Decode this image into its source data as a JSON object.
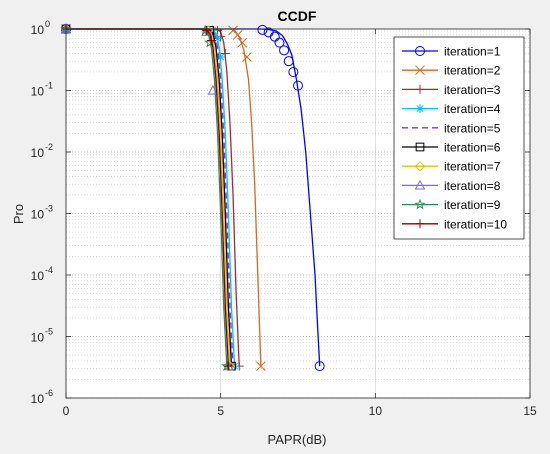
{
  "chart_data": {
    "type": "line",
    "title": "CCDF",
    "xlabel": "PAPR(dB)",
    "ylabel": "Pro",
    "x_scale": "linear",
    "y_scale": "log",
    "xlim": [
      0,
      15
    ],
    "ylim": [
      1e-06,
      1
    ],
    "x_ticks": [
      0,
      5,
      10,
      15
    ],
    "x_tick_labels": [
      "0",
      "5",
      "10",
      "15"
    ],
    "y_ticks": [
      1e-06,
      1e-05,
      0.0001,
      0.001,
      0.01,
      0.1,
      1
    ],
    "y_tick_labels": [
      {
        "base": "10",
        "exp": "-6"
      },
      {
        "base": "10",
        "exp": "-5"
      },
      {
        "base": "10",
        "exp": "-4"
      },
      {
        "base": "10",
        "exp": "-3"
      },
      {
        "base": "10",
        "exp": "-2"
      },
      {
        "base": "10",
        "exp": "-1"
      },
      {
        "base": "10",
        "exp": "0"
      }
    ],
    "grid": true,
    "minor_grid": true,
    "legend_position": "top-right",
    "series": [
      {
        "name": "iteration=1",
        "color": "#0000ff",
        "marker": "circle",
        "dash": "solid",
        "x": [
          0,
          6.3,
          6.55,
          6.8,
          7.0,
          7.15,
          7.3,
          7.45,
          7.6,
          7.75,
          7.9,
          8.05,
          8.15,
          8.2,
          8.2
        ],
        "y": [
          1,
          1,
          0.98,
          0.93,
          0.78,
          0.58,
          0.38,
          0.15,
          0.05,
          0.01,
          0.001,
          0.0001,
          1e-05,
          3.5e-06,
          3.3e-06
        ],
        "marker_x": [
          0,
          6.35,
          6.55,
          6.75,
          6.9,
          7.05,
          7.2,
          7.35,
          7.5,
          8.2
        ],
        "marker_y": [
          1,
          0.97,
          0.88,
          0.75,
          0.6,
          0.45,
          0.3,
          0.2,
          0.12,
          3.3e-06
        ]
      },
      {
        "name": "iteration=2",
        "color": "#d2691e",
        "marker": "x",
        "dash": "solid",
        "x": [
          0,
          5.3,
          5.45,
          5.6,
          5.75,
          5.9,
          6.0,
          6.1,
          6.2,
          6.3
        ],
        "y": [
          1,
          1,
          0.95,
          0.75,
          0.45,
          0.15,
          0.03,
          0.003,
          0.0001,
          3.3e-06
        ],
        "marker_x": [
          0,
          5.4,
          5.55,
          5.7,
          5.85,
          6.3
        ],
        "marker_y": [
          1,
          0.95,
          0.8,
          0.6,
          0.35,
          3.3e-06
        ]
      },
      {
        "name": "iteration=3",
        "color": "#a52a2a",
        "marker": "plus",
        "dash": "solid",
        "x": [
          0,
          4.85,
          5.0,
          5.1,
          5.2,
          5.3,
          5.4,
          5.5,
          5.6
        ],
        "y": [
          1,
          1,
          0.9,
          0.6,
          0.2,
          0.03,
          0.002,
          5e-05,
          3.3e-06
        ],
        "marker_x": [
          0,
          4.9,
          5.0,
          5.15,
          5.6
        ],
        "marker_y": [
          1,
          0.95,
          0.75,
          0.4,
          3.3e-06
        ]
      },
      {
        "name": "iteration=4",
        "color": "#00bfff",
        "marker": "asterisk",
        "dash": "solid",
        "x": [
          0,
          4.7,
          4.85,
          4.95,
          5.05,
          5.15,
          5.25,
          5.35,
          5.45
        ],
        "y": [
          1,
          1,
          0.85,
          0.5,
          0.15,
          0.02,
          0.001,
          3e-05,
          3.3e-06
        ],
        "marker_x": [
          0,
          4.75,
          4.9,
          5.0,
          5.45
        ],
        "marker_y": [
          1,
          0.95,
          0.7,
          0.35,
          3.3e-06
        ]
      },
      {
        "name": "iteration=5",
        "color": "#8a2be2",
        "marker": "none",
        "dash": "dashed",
        "x": [
          0,
          4.65,
          4.8,
          4.9,
          5.0,
          5.1,
          5.2,
          5.3,
          5.4
        ],
        "y": [
          1,
          1,
          0.85,
          0.5,
          0.15,
          0.02,
          0.001,
          3e-05,
          3.3e-06
        ],
        "marker_x": [],
        "marker_y": []
      },
      {
        "name": "iteration=6",
        "color": "#000000",
        "marker": "square",
        "dash": "solid",
        "x": [
          0,
          4.6,
          4.75,
          4.85,
          4.95,
          5.05,
          5.15,
          5.25,
          5.35
        ],
        "y": [
          1,
          1,
          0.85,
          0.5,
          0.15,
          0.02,
          0.001,
          3e-05,
          3.3e-06
        ],
        "marker_x": [
          0,
          4.65,
          5.35
        ],
        "marker_y": [
          1,
          0.95,
          3.3e-06
        ]
      },
      {
        "name": "iteration=7",
        "color": "#e6c000",
        "marker": "diamond",
        "dash": "solid",
        "x": [
          0,
          4.55,
          4.7,
          4.8,
          4.9,
          5.0,
          5.1,
          5.2,
          5.3
        ],
        "y": [
          1,
          1,
          0.85,
          0.5,
          0.15,
          0.02,
          0.001,
          3e-05,
          3.3e-06
        ],
        "marker_x": [
          0,
          4.6,
          5.3
        ],
        "marker_y": [
          1,
          0.95,
          3.3e-06
        ]
      },
      {
        "name": "iteration=8",
        "color": "#7b68ee",
        "marker": "triangle",
        "dash": "solid",
        "x": [
          0,
          4.5,
          4.65,
          4.75,
          4.85,
          4.95,
          5.05,
          5.15,
          5.25
        ],
        "y": [
          1,
          1,
          0.85,
          0.5,
          0.15,
          0.02,
          0.001,
          3e-05,
          3.3e-06
        ],
        "marker_x": [
          0,
          4.55,
          4.75,
          5.25
        ],
        "marker_y": [
          1,
          0.9,
          0.1,
          3.3e-06
        ]
      },
      {
        "name": "iteration=9",
        "color": "#2e8b57",
        "marker": "pentagram",
        "dash": "solid",
        "x": [
          0,
          4.45,
          4.6,
          4.7,
          4.8,
          4.9,
          5.0,
          5.1,
          5.2
        ],
        "y": [
          1,
          1,
          0.85,
          0.5,
          0.15,
          0.02,
          0.001,
          3e-05,
          3.3e-06
        ],
        "marker_x": [
          0,
          4.5,
          4.65,
          5.2
        ],
        "marker_y": [
          1,
          0.95,
          0.6,
          3.3e-06
        ]
      },
      {
        "name": "iteration=10",
        "color": "#8b0000",
        "marker": "plus",
        "dash": "solid",
        "x": [
          0,
          4.5,
          4.65,
          4.75,
          4.85,
          4.95,
          5.05,
          5.15,
          5.25
        ],
        "y": [
          1,
          1,
          0.85,
          0.5,
          0.15,
          0.02,
          0.001,
          3e-05,
          3.3e-06
        ],
        "marker_x": [
          0,
          4.55,
          4.7,
          5.25
        ],
        "marker_y": [
          1,
          0.95,
          0.65,
          3.3e-06
        ]
      }
    ]
  }
}
